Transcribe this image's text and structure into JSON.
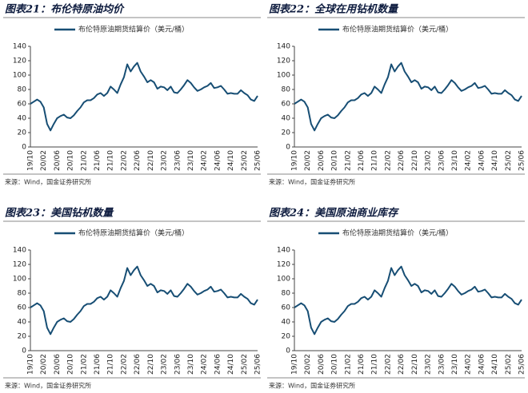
{
  "chart_data": [
    {
      "type": "line",
      "title": "图表21：布伦特原油均价",
      "source": "来源：Wind，国金证券研究所",
      "categories": [
        "19/10",
        null,
        null,
        null,
        "20/02",
        null,
        null,
        null,
        "20/06",
        null,
        null,
        null,
        "20/10",
        null,
        null,
        null,
        "21/02",
        null,
        null,
        null,
        "21/06",
        null,
        null,
        null,
        "21/10",
        null,
        null,
        null,
        "22/02",
        null,
        null,
        null,
        "22/06",
        null,
        null,
        null,
        "22/10",
        null,
        null,
        null,
        "23/02",
        null,
        null,
        null,
        "23/06",
        null,
        null,
        null,
        "23/10",
        null,
        null,
        null,
        "24/02",
        null,
        null,
        null,
        "24/06",
        null,
        null,
        null,
        "24/10",
        null,
        null,
        null,
        "25/02",
        null,
        null,
        null,
        "25/06"
      ],
      "series": [
        {
          "name": "布伦特原油期货结算价（美元/桶）",
          "color": "#174e74",
          "values": [
            60,
            63,
            66,
            63,
            55,
            32,
            23,
            32,
            40,
            43,
            45,
            41,
            40,
            44,
            50,
            55,
            62,
            65,
            65,
            68,
            73,
            75,
            71,
            75,
            84,
            80,
            75,
            87,
            97,
            115,
            105,
            112,
            117,
            105,
            98,
            90,
            93,
            90,
            81,
            84,
            83,
            79,
            84,
            76,
            75,
            80,
            86,
            93,
            89,
            83,
            78,
            80,
            83,
            85,
            89,
            82,
            83,
            85,
            80,
            74,
            75,
            74,
            74,
            79,
            75,
            72,
            66,
            64,
            71
          ]
        }
      ],
      "ylim": [
        0,
        140
      ],
      "yticks": [
        0,
        20,
        40,
        60,
        80,
        100,
        120,
        140
      ]
    },
    {
      "type": "line",
      "title": "图表22：全球在用钻机数量",
      "source": "来源：Wind，国金证券研究所",
      "categories": [
        "19/10",
        null,
        null,
        null,
        "20/02",
        null,
        null,
        null,
        "20/06",
        null,
        null,
        null,
        "20/10",
        null,
        null,
        null,
        "21/02",
        null,
        null,
        null,
        "21/06",
        null,
        null,
        null,
        "21/10",
        null,
        null,
        null,
        "22/02",
        null,
        null,
        null,
        "22/06",
        null,
        null,
        null,
        "22/10",
        null,
        null,
        null,
        "23/02",
        null,
        null,
        null,
        "23/06",
        null,
        null,
        null,
        "23/10",
        null,
        null,
        null,
        "24/02",
        null,
        null,
        null,
        "24/06",
        null,
        null,
        null,
        "24/10",
        null,
        null,
        null,
        "25/02",
        null,
        null,
        null,
        "25/06"
      ],
      "series": [
        {
          "name": "布伦特原油期货结算价（美元/桶）",
          "color": "#174e74",
          "values": [
            60,
            63,
            66,
            63,
            55,
            32,
            23,
            32,
            40,
            43,
            45,
            41,
            40,
            44,
            50,
            55,
            62,
            65,
            65,
            68,
            73,
            75,
            71,
            75,
            84,
            80,
            75,
            87,
            97,
            115,
            105,
            112,
            117,
            105,
            98,
            90,
            93,
            90,
            81,
            84,
            83,
            79,
            84,
            76,
            75,
            80,
            86,
            93,
            89,
            83,
            78,
            80,
            83,
            85,
            89,
            82,
            83,
            85,
            80,
            74,
            75,
            74,
            74,
            79,
            75,
            72,
            66,
            64,
            71
          ]
        }
      ],
      "ylim": [
        0,
        140
      ],
      "yticks": [
        0,
        20,
        40,
        60,
        80,
        100,
        120,
        140
      ]
    },
    {
      "type": "line",
      "title": "图表23：美国钻机数量",
      "source": "来源：Wind，国金证券研究所",
      "categories": [
        "19/10",
        null,
        null,
        null,
        "20/02",
        null,
        null,
        null,
        "20/06",
        null,
        null,
        null,
        "20/10",
        null,
        null,
        null,
        "21/02",
        null,
        null,
        null,
        "21/06",
        null,
        null,
        null,
        "21/10",
        null,
        null,
        null,
        "22/02",
        null,
        null,
        null,
        "22/06",
        null,
        null,
        null,
        "22/10",
        null,
        null,
        null,
        "23/02",
        null,
        null,
        null,
        "23/06",
        null,
        null,
        null,
        "23/10",
        null,
        null,
        null,
        "24/02",
        null,
        null,
        null,
        "24/06",
        null,
        null,
        null,
        "24/10",
        null,
        null,
        null,
        "25/02",
        null,
        null,
        null,
        "25/06"
      ],
      "series": [
        {
          "name": "布伦特原油期货结算价（美元/桶）",
          "color": "#174e74",
          "values": [
            60,
            63,
            66,
            63,
            55,
            32,
            23,
            32,
            40,
            43,
            45,
            41,
            40,
            44,
            50,
            55,
            62,
            65,
            65,
            68,
            73,
            75,
            71,
            75,
            84,
            80,
            75,
            87,
            97,
            115,
            105,
            112,
            117,
            105,
            98,
            90,
            93,
            90,
            81,
            84,
            83,
            79,
            84,
            76,
            75,
            80,
            86,
            93,
            89,
            83,
            78,
            80,
            83,
            85,
            89,
            82,
            83,
            85,
            80,
            74,
            75,
            74,
            74,
            79,
            75,
            72,
            66,
            64,
            71
          ]
        }
      ],
      "ylim": [
        0,
        140
      ],
      "yticks": [
        0,
        20,
        40,
        60,
        80,
        100,
        120,
        140
      ]
    },
    {
      "type": "line",
      "title": "图表24：美国原油商业库存",
      "source": "来源：Wind，国金证券研究所",
      "categories": [
        "19/10",
        null,
        null,
        null,
        "20/02",
        null,
        null,
        null,
        "20/06",
        null,
        null,
        null,
        "20/10",
        null,
        null,
        null,
        "21/02",
        null,
        null,
        null,
        "21/06",
        null,
        null,
        null,
        "21/10",
        null,
        null,
        null,
        "22/02",
        null,
        null,
        null,
        "22/06",
        null,
        null,
        null,
        "22/10",
        null,
        null,
        null,
        "23/02",
        null,
        null,
        null,
        "23/06",
        null,
        null,
        null,
        "23/10",
        null,
        null,
        null,
        "24/02",
        null,
        null,
        null,
        "24/06",
        null,
        null,
        null,
        "24/10",
        null,
        null,
        null,
        "25/02",
        null,
        null,
        null,
        "25/06"
      ],
      "series": [
        {
          "name": "布伦特原油期货结算价（美元/桶）",
          "color": "#174e74",
          "values": [
            60,
            63,
            66,
            63,
            55,
            32,
            23,
            32,
            40,
            43,
            45,
            41,
            40,
            44,
            50,
            55,
            62,
            65,
            65,
            68,
            73,
            75,
            71,
            75,
            84,
            80,
            75,
            87,
            97,
            115,
            105,
            112,
            117,
            105,
            98,
            90,
            93,
            90,
            81,
            84,
            83,
            79,
            84,
            76,
            75,
            80,
            86,
            93,
            89,
            83,
            78,
            80,
            83,
            85,
            89,
            82,
            83,
            85,
            80,
            74,
            75,
            74,
            74,
            79,
            75,
            72,
            66,
            64,
            71
          ]
        }
      ],
      "ylim": [
        0,
        140
      ],
      "yticks": [
        0,
        20,
        40,
        60,
        80,
        100,
        120,
        140
      ]
    }
  ]
}
